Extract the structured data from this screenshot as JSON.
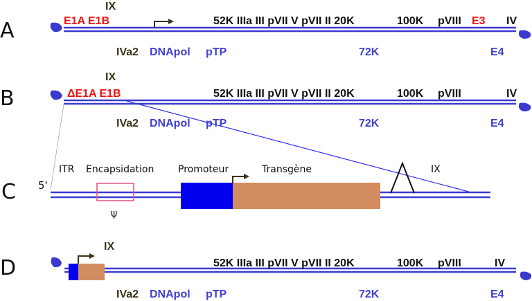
{
  "colors": {
    "line": "#3a3ad0",
    "red": "#ee1111",
    "olive": "#3a3418",
    "blue_text": "#4040d0",
    "promoter": "#0000ee",
    "transgene": "#d38c60",
    "psi_box": "#e8507a"
  },
  "rows": {
    "A": {
      "letter": "A",
      "ix": "IX",
      "e1": "E1A E1B",
      "late": "52K IIIa III pVII V pVII II 20K",
      "k100": "100K",
      "pviii": "pVIII",
      "e3": "E3",
      "iv": "IV",
      "iva2": "IVa2",
      "dnapol": "DNApol",
      "ptp": "pTP",
      "k72": "72K",
      "e4": "E4"
    },
    "B": {
      "letter": "B",
      "ix": "IX",
      "e1": "ΔE1A E1B",
      "late": "52K IIIa III pVII V pVII II 20K",
      "k100": "100K",
      "pviii": "pVIII",
      "iv": "IV",
      "iva2": "IVa2",
      "dnapol": "DNApol",
      "ptp": "pTP",
      "k72": "72K",
      "e4": "E4"
    },
    "C": {
      "letter": "C",
      "five": "5'",
      "itr": "ITR",
      "encaps": "Encapsidation",
      "psi": "ψ",
      "promoteur": "Promoteur",
      "transgene": "Transgène",
      "ix": "IX"
    },
    "D": {
      "letter": "D",
      "ix": "IX",
      "late": "52K IIIa III pVII V pVII II 20K",
      "k100": "100K",
      "pviii": "pVIII",
      "iv": "IV",
      "iva2": "IVa2",
      "dnapol": "DNApol",
      "ptp": "pTP",
      "k72": "72K",
      "e4": "E4"
    }
  }
}
